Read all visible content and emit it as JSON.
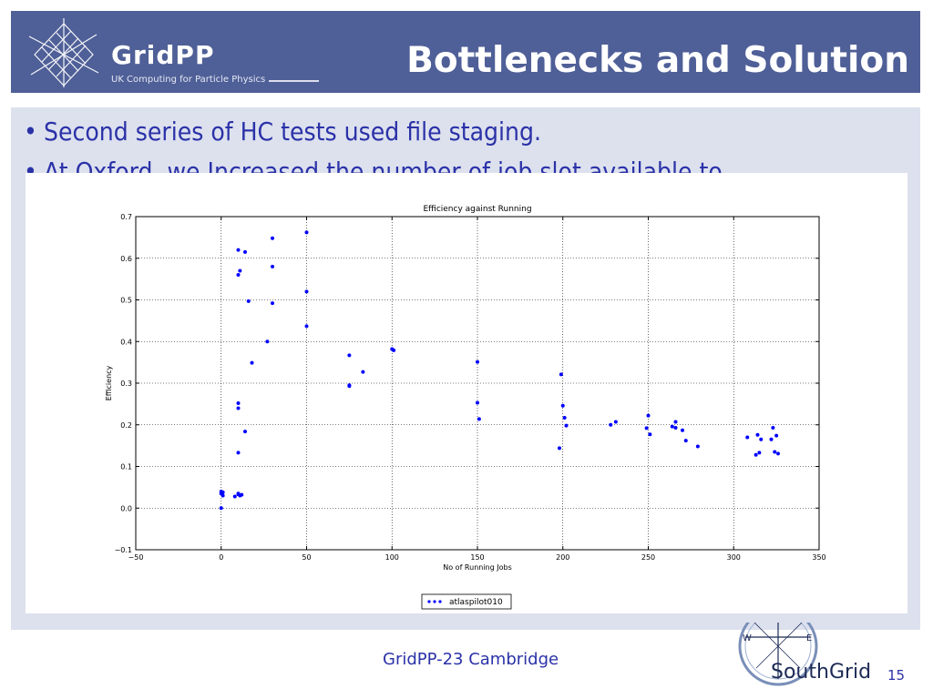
{
  "header": {
    "logo_word": "GridPP",
    "logo_subtitle": "UK Computing for Particle Physics",
    "title": "Bottlenecks and Solution"
  },
  "bullets": [
    "Second series of HC tests used file staging.",
    "At Oxford, we Increased the number of job slot available to"
  ],
  "chart_data": {
    "type": "scatter",
    "title": "Efficiency against Running",
    "xlabel": "No of Running Jobs",
    "ylabel": "Efficiency",
    "xlim": [
      -50,
      350
    ],
    "ylim": [
      -0.1,
      0.7
    ],
    "xticks": [
      -50,
      0,
      50,
      100,
      150,
      200,
      250,
      300,
      350
    ],
    "xtick_labels": [
      "−50",
      "0",
      "50",
      "100",
      "150",
      "200",
      "250",
      "300",
      "350"
    ],
    "yticks": [
      -0.1,
      0.0,
      0.1,
      0.2,
      0.3,
      0.4,
      0.5,
      0.6,
      0.7
    ],
    "ytick_labels": [
      "−0.1",
      "0.0",
      "0.1",
      "0.2",
      "0.3",
      "0.4",
      "0.5",
      "0.6",
      "0.7"
    ],
    "grid": true,
    "legend_position": "bottom-center",
    "color": "#0000ff",
    "series": [
      {
        "name": "atlaspilot010",
        "points": [
          [
            0,
            0.0
          ],
          [
            0,
            0.035
          ],
          [
            0,
            0.04
          ],
          [
            1,
            0.03
          ],
          [
            1,
            0.038
          ],
          [
            8,
            0.028
          ],
          [
            10,
            0.035
          ],
          [
            11,
            0.03
          ],
          [
            12,
            0.032
          ],
          [
            10,
            0.033
          ],
          [
            10,
            0.62
          ],
          [
            14,
            0.615
          ],
          [
            11,
            0.57
          ],
          [
            10,
            0.56
          ],
          [
            16,
            0.497
          ],
          [
            10,
            0.252
          ],
          [
            10,
            0.24
          ],
          [
            10,
            0.133
          ],
          [
            14,
            0.184
          ],
          [
            18,
            0.349
          ],
          [
            27,
            0.4
          ],
          [
            30,
            0.648
          ],
          [
            30,
            0.58
          ],
          [
            30,
            0.492
          ],
          [
            50,
            0.662
          ],
          [
            50,
            0.52
          ],
          [
            50,
            0.437
          ],
          [
            75,
            0.367
          ],
          [
            75,
            0.295
          ],
          [
            75,
            0.293
          ],
          [
            83,
            0.327
          ],
          [
            100,
            0.382
          ],
          [
            101,
            0.379
          ],
          [
            150,
            0.351
          ],
          [
            150,
            0.253
          ],
          [
            151,
            0.214
          ],
          [
            198,
            0.144
          ],
          [
            199,
            0.321
          ],
          [
            200,
            0.246
          ],
          [
            201,
            0.217
          ],
          [
            202,
            0.198
          ],
          [
            228,
            0.2
          ],
          [
            231,
            0.207
          ],
          [
            249,
            0.192
          ],
          [
            250,
            0.222
          ],
          [
            251,
            0.177
          ],
          [
            264,
            0.196
          ],
          [
            266,
            0.207
          ],
          [
            266,
            0.193
          ],
          [
            270,
            0.187
          ],
          [
            272,
            0.162
          ],
          [
            279,
            0.148
          ],
          [
            308,
            0.17
          ],
          [
            313,
            0.128
          ],
          [
            314,
            0.176
          ],
          [
            315,
            0.133
          ],
          [
            316,
            0.165
          ],
          [
            322,
            0.165
          ],
          [
            323,
            0.193
          ],
          [
            324,
            0.135
          ],
          [
            325,
            0.174
          ],
          [
            326,
            0.131
          ]
        ]
      }
    ]
  },
  "footer": {
    "event": "GridPP-23 Cambridge",
    "org_logo_text": "SouthGrid",
    "compass_w": "W",
    "compass_e": "E",
    "page_number": "15"
  }
}
